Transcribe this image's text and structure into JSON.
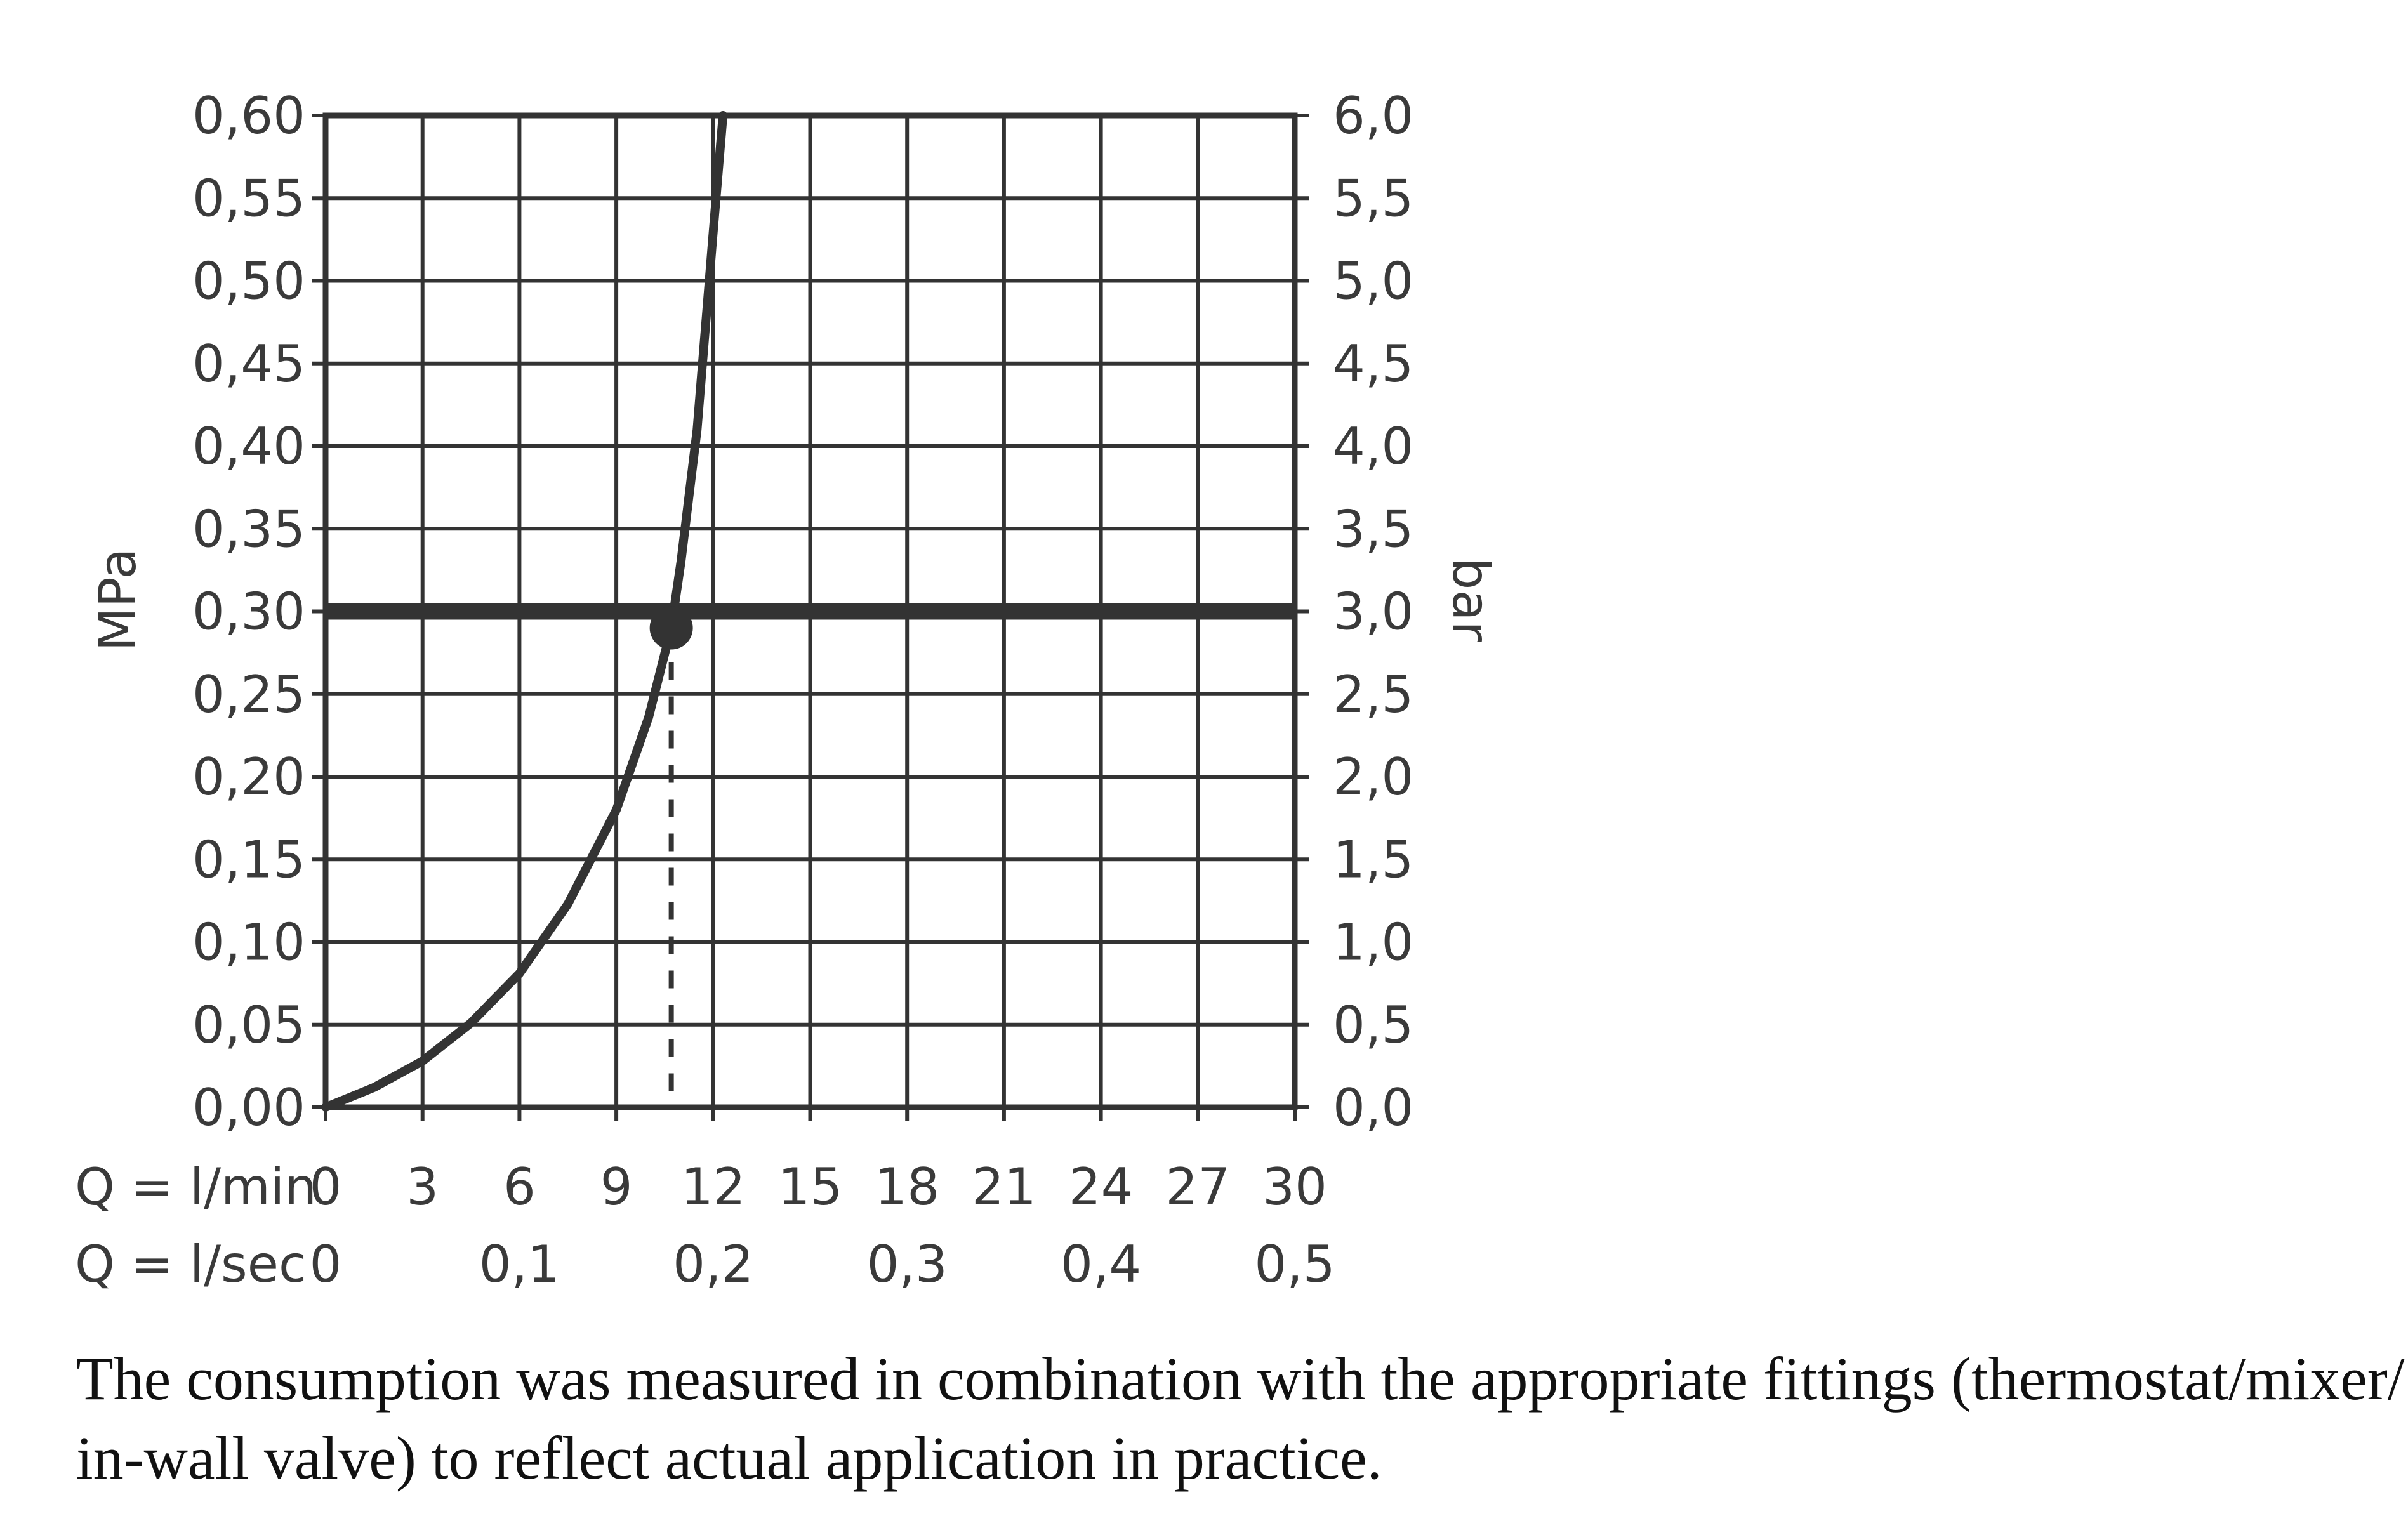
{
  "chart_data": {
    "type": "line",
    "left_axis": {
      "label": "MPa",
      "ticks": [
        "0,00",
        "0,05",
        "0,10",
        "0,15",
        "0,20",
        "0,25",
        "0,30",
        "0,35",
        "0,40",
        "0,45",
        "0,50",
        "0,55",
        "0,60"
      ],
      "range": [
        0,
        0.6
      ]
    },
    "right_axis": {
      "label": "bar",
      "ticks": [
        "0,0",
        "0,5",
        "1,0",
        "1,5",
        "2,0",
        "2,5",
        "3,0",
        "3,5",
        "4,0",
        "4,5",
        "5,0",
        "5,5",
        "6,0"
      ],
      "range": [
        0,
        6
      ]
    },
    "x_axis_lmin": {
      "label": "Q = l/min",
      "ticks": [
        "0",
        "3",
        "6",
        "9",
        "12",
        "15",
        "18",
        "21",
        "24",
        "27",
        "30"
      ],
      "range": [
        0,
        30
      ]
    },
    "x_axis_lsec": {
      "label": "Q = l/sec",
      "ticks": [
        {
          "value": 0,
          "label": "0"
        },
        {
          "value": 0.1,
          "label": "0,1"
        },
        {
          "value": 0.2,
          "label": "0,2"
        },
        {
          "value": 0.3,
          "label": "0,3"
        },
        {
          "value": 0.4,
          "label": "0,4"
        },
        {
          "value": 0.5,
          "label": "0,5"
        }
      ]
    },
    "series": [
      {
        "x": [
          0,
          1.5,
          3,
          4.5,
          6,
          7.5,
          9,
          10,
          10.7,
          11,
          11.5,
          12,
          12.3
        ],
        "y": [
          0,
          0.012,
          0.028,
          0.051,
          0.081,
          0.123,
          0.18,
          0.236,
          0.29,
          0.33,
          0.41,
          0.53,
          0.6
        ]
      }
    ],
    "reference_line": {
      "y": 0.3
    },
    "operating_point": {
      "x": 10.7,
      "y": 0.29
    },
    "grid": true,
    "colors": {
      "curve": "#333333",
      "grid": "#333333",
      "text": "#3a3a3a"
    }
  },
  "caption": {
    "line1": "The consumption was measured in combination with the appropriate fittings (thermostat/mixer/",
    "line2": "in-wall valve) to reflect actual application in practice."
  }
}
